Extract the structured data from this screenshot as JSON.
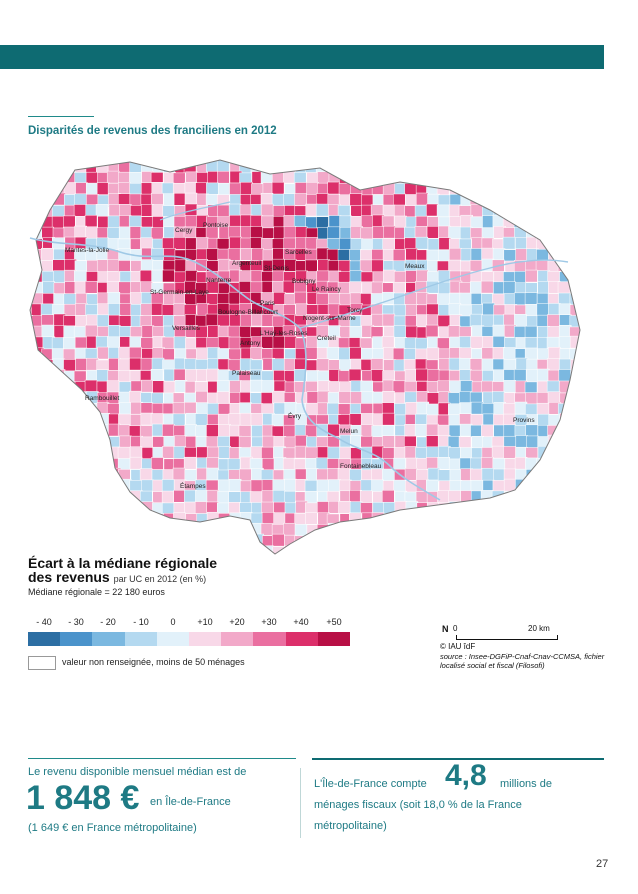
{
  "map_title": "Disparités de revenus des franciliens en 2012",
  "places": [
    "Cergy",
    "Pontoise",
    "Mantes-la-Jolie",
    "Argenteuil",
    "St-Denis",
    "Sarcelles",
    "Nanterre",
    "Bobigny",
    "Le Raincy",
    "St-Germain-en-Laye",
    "Paris",
    "Meaux",
    "Boulogne-Billancourt",
    "Versailles",
    "Nogent-sur-Marne",
    "Antony",
    "L'Haÿ-les-Roses",
    "Créteil",
    "Torcy",
    "Palaiseau",
    "Rambouillet",
    "Évry",
    "Melun",
    "Provins",
    "Étampes",
    "Fontainebleau"
  ],
  "legend": {
    "title_line1": "Écart à la médiane régionale",
    "title_line2": "des revenus",
    "title_unit": "par UC en 2012 (en %)",
    "median": "Médiane régionale = 22 180 euros",
    "ticks": [
      "- 40",
      "- 30",
      "- 20",
      "- 10",
      "0",
      "+10",
      "+20",
      "+30",
      "+40",
      "+50"
    ],
    "colors": [
      "#2c6ea3",
      "#4b93cb",
      "#7bb8e0",
      "#b4d9f0",
      "#e2f1fa",
      "#f8d8e8",
      "#f2a9c9",
      "#ea6fa0",
      "#dc2f6a",
      "#b80f45"
    ],
    "na_label": "valeur non renseignée, moins de 50 ménages"
  },
  "north": "N",
  "scale": {
    "start": "0",
    "end": "20 km"
  },
  "credit": "© IAU îdF",
  "source": "source : Insee-DGFiP-Cnaf-Cnav-CCMSA, fichier localisé social et fiscal (Filosofi)",
  "left_block": {
    "intro": "Le revenu disponible mensuel médian est de",
    "big": "1 848 €",
    "suffix": "en Île-de-France",
    "note": "(1 649 € en France métropolitaine)"
  },
  "right_block": {
    "pre": "L'Île-de-France compte",
    "big": "4,8",
    "post": "millions de",
    "line2": "ménages fiscaux (soit 18,0 % de la France",
    "line3": "métropolitaine)"
  },
  "page_number": "27"
}
